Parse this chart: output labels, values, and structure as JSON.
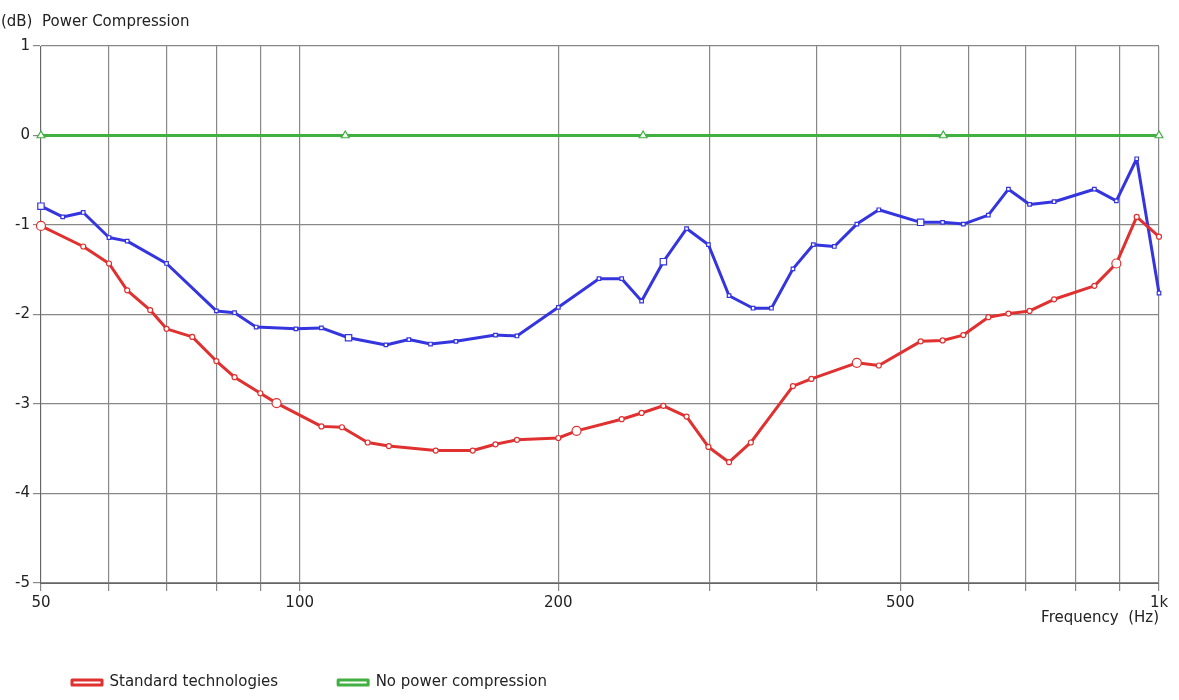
{
  "chart_data": {
    "type": "line",
    "ylabel": "(dB)  Power Compression",
    "xlabel": "Frequency  (Hz)",
    "log": "x",
    "xlim": [
      50,
      1000
    ],
    "xticks": [
      50,
      {
        "value": 60,
        "label": null
      },
      {
        "value": 70,
        "label": null
      },
      {
        "value": 80,
        "label": null
      },
      {
        "value": 90,
        "label": null
      },
      100,
      200,
      {
        "value": 300,
        "label": null
      },
      {
        "value": 400,
        "label": null
      },
      500,
      {
        "value": 600,
        "label": null
      },
      {
        "value": 700,
        "label": null
      },
      {
        "value": 800,
        "label": null
      },
      {
        "value": 900,
        "label": null
      },
      {
        "value": 1000,
        "label": "1k"
      }
    ],
    "ylim": [
      -5,
      1
    ],
    "yticks": [
      -5,
      -4,
      -3,
      -2,
      -1,
      0,
      1
    ],
    "grid": true,
    "legend": "bottom",
    "series": [
      {
        "name": "Standard technologies",
        "color": "#e03030",
        "marker": "circle",
        "x": [
          50,
          56,
          60,
          63,
          67,
          70,
          75,
          80,
          84,
          90,
          94,
          106,
          112,
          120,
          127,
          144,
          159,
          169,
          179,
          200,
          210,
          237,
          250,
          265,
          282,
          299,
          316,
          335,
          375,
          394,
          445,
          472,
          528,
          560,
          592,
          633,
          668,
          707,
          755,
          841,
          892,
          942,
          1000
        ],
        "values": [
          -1.01,
          -1.24,
          -1.43,
          -1.73,
          -1.95,
          -2.16,
          -2.25,
          -2.52,
          -2.7,
          -2.88,
          -2.99,
          -3.25,
          -3.26,
          -3.43,
          -3.47,
          -3.52,
          -3.52,
          -3.45,
          -3.4,
          -3.38,
          -3.3,
          -3.17,
          -3.1,
          -3.02,
          -3.14,
          -3.48,
          -3.65,
          -3.43,
          -2.8,
          -2.72,
          -2.54,
          -2.57,
          -2.3,
          -2.29,
          -2.23,
          -2.03,
          -1.99,
          -1.96,
          -1.83,
          -1.68,
          -1.43,
          -0.91,
          -1.13
        ]
      },
      {
        "color": "#3535e0",
        "marker": "square",
        "x": [
          50,
          53,
          56,
          60,
          63,
          70,
          80,
          84,
          89,
          99,
          106,
          114,
          126,
          134,
          142,
          152,
          169,
          179,
          200,
          223,
          237,
          250,
          265,
          282,
          299,
          316,
          337,
          354,
          375,
          396,
          419,
          445,
          472,
          528,
          560,
          592,
          633,
          668,
          707,
          755,
          841,
          892,
          942,
          1000
        ],
        "values": [
          -0.79,
          -0.91,
          -0.86,
          -1.14,
          -1.18,
          -1.43,
          -1.96,
          -1.98,
          -2.14,
          -2.16,
          -2.15,
          -2.26,
          -2.34,
          -2.28,
          -2.33,
          -2.3,
          -2.23,
          -2.24,
          -1.92,
          -1.6,
          -1.6,
          -1.85,
          -1.41,
          -1.04,
          -1.22,
          -1.79,
          -1.93,
          -1.93,
          -1.49,
          -1.22,
          -1.24,
          -0.99,
          -0.83,
          -0.97,
          -0.97,
          -0.99,
          -0.89,
          -0.6,
          -0.77,
          -0.74,
          -0.6,
          -0.73,
          -0.26,
          -1.76
        ]
      },
      {
        "name": "No power compression",
        "color": "#40b040",
        "marker": "triangle",
        "x": [
          50,
          113,
          251,
          561,
          1000
        ],
        "values": [
          0,
          0,
          0,
          0,
          0
        ]
      }
    ]
  }
}
